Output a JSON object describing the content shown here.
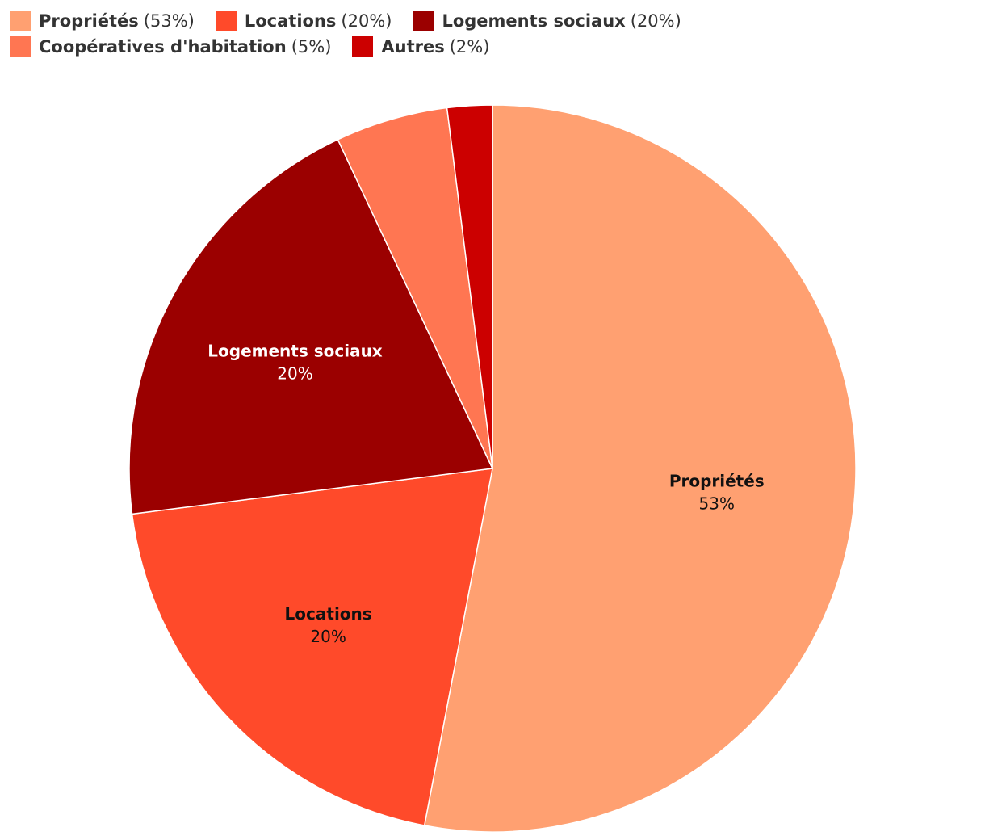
{
  "chart_data": {
    "type": "pie",
    "title": "",
    "start_angle_deg": 0,
    "direction": "clockwise",
    "legend_position": "top-left",
    "slices": [
      {
        "label": "Propriétés",
        "value": 53,
        "pct_text": "53%",
        "legend_pct": "(53%)",
        "color": "#FFA071",
        "label_color": "#111111",
        "show_label": true
      },
      {
        "label": "Locations",
        "value": 20,
        "pct_text": "20%",
        "legend_pct": "(20%)",
        "color": "#FF4A2A",
        "label_color": "#111111",
        "show_label": true
      },
      {
        "label": "Logements sociaux",
        "value": 20,
        "pct_text": "20%",
        "legend_pct": "(20%)",
        "color": "#9B0000",
        "label_color": "#ffffff",
        "show_label": true
      },
      {
        "label": "Coopératives d'habitation",
        "value": 5,
        "pct_text": "5%",
        "legend_pct": "(5%)",
        "color": "#FF7652",
        "label_color": "#111111",
        "show_label": false
      },
      {
        "label": "Autres",
        "value": 2,
        "pct_text": "2%",
        "legend_pct": "(2%)",
        "color": "#CC0000",
        "label_color": "#ffffff",
        "show_label": false
      }
    ]
  }
}
